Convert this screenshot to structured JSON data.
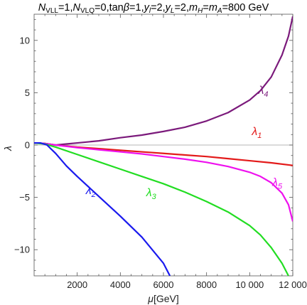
{
  "chart_data": {
    "type": "line",
    "title_parts": [
      {
        "t": "N",
        "style": "i"
      },
      {
        "t": "VLL",
        "style": "sub"
      },
      {
        "t": "=1,",
        "style": "n"
      },
      {
        "t": "N",
        "style": "i"
      },
      {
        "t": "VLQ",
        "style": "sub"
      },
      {
        "t": "=0,tan",
        "style": "n"
      },
      {
        "t": "β",
        "style": "i"
      },
      {
        "t": "=1,",
        "style": "n"
      },
      {
        "t": "y",
        "style": "i"
      },
      {
        "t": "l",
        "style": "subi"
      },
      {
        "t": "=2,",
        "style": "n"
      },
      {
        "t": "y",
        "style": "i"
      },
      {
        "t": "L",
        "style": "subi"
      },
      {
        "t": "=2,",
        "style": "n"
      },
      {
        "t": "m",
        "style": "i"
      },
      {
        "t": "H",
        "style": "subi"
      },
      {
        "t": "=",
        "style": "n"
      },
      {
        "t": "m",
        "style": "i"
      },
      {
        "t": "A",
        "style": "subi"
      },
      {
        "t": "=800 GeV",
        "style": "n"
      }
    ],
    "xlabel_parts": [
      {
        "t": "μ",
        "style": "i"
      },
      {
        "t": "[GeV]",
        "style": "n"
      }
    ],
    "ylabel": "λ",
    "xlim": [
      0,
      12000
    ],
    "ylim": [
      -12.5,
      12.5
    ],
    "x_ticks": [
      2000,
      4000,
      6000,
      8000,
      10000,
      12000
    ],
    "x_tick_labels": [
      "2000",
      "4000",
      "6000",
      "8000",
      "10 000",
      "12 000"
    ],
    "y_ticks": [
      -10,
      -5,
      0,
      5,
      10
    ],
    "y_tick_labels": [
      "−10",
      "−5",
      "0",
      "5",
      "10"
    ],
    "zero_line": true,
    "series": [
      {
        "name": "λ4",
        "base": "λ",
        "sub": "4",
        "color": "#7b1a7b",
        "points": [
          [
            0,
            0.2
          ],
          [
            500,
            0.15
          ],
          [
            1000,
            0
          ],
          [
            1500,
            0.1
          ],
          [
            2000,
            0.2
          ],
          [
            3000,
            0.4
          ],
          [
            4000,
            0.7
          ],
          [
            5000,
            0.95
          ],
          [
            6000,
            1.3
          ],
          [
            7000,
            1.7
          ],
          [
            8000,
            2.3
          ],
          [
            9000,
            3.1
          ],
          [
            10000,
            4.3
          ],
          [
            10500,
            5.2
          ],
          [
            11000,
            6.5
          ],
          [
            11500,
            8.6
          ],
          [
            11800,
            10.4
          ],
          [
            12000,
            12.3
          ]
        ]
      },
      {
        "name": "λ1",
        "base": "λ",
        "sub": "1",
        "color": "#e31a1a",
        "points": [
          [
            0,
            0.2
          ],
          [
            500,
            0.15
          ],
          [
            1000,
            0
          ],
          [
            2000,
            -0.2
          ],
          [
            3000,
            -0.35
          ],
          [
            4000,
            -0.5
          ],
          [
            5000,
            -0.65
          ],
          [
            6000,
            -0.8
          ],
          [
            7000,
            -0.95
          ],
          [
            8000,
            -1.1
          ],
          [
            9000,
            -1.3
          ],
          [
            10000,
            -1.5
          ],
          [
            11000,
            -1.7
          ],
          [
            12000,
            -1.95
          ]
        ]
      },
      {
        "name": "λ5",
        "base": "λ",
        "sub": "5",
        "color": "#ee11ee",
        "points": [
          [
            0,
            0.2
          ],
          [
            500,
            0.15
          ],
          [
            1000,
            0
          ],
          [
            2000,
            -0.25
          ],
          [
            3000,
            -0.45
          ],
          [
            4000,
            -0.65
          ],
          [
            5000,
            -0.85
          ],
          [
            6000,
            -1.1
          ],
          [
            7000,
            -1.35
          ],
          [
            8000,
            -1.65
          ],
          [
            9000,
            -2.05
          ],
          [
            10000,
            -2.6
          ],
          [
            10500,
            -3.0
          ],
          [
            11000,
            -3.6
          ],
          [
            11500,
            -4.6
          ],
          [
            11800,
            -5.7
          ],
          [
            12000,
            -7.3
          ]
        ]
      },
      {
        "name": "λ3",
        "base": "λ",
        "sub": "3",
        "color": "#22dd22",
        "points": [
          [
            0,
            0.2
          ],
          [
            500,
            0.1
          ],
          [
            1000,
            -0.2
          ],
          [
            2000,
            -0.9
          ],
          [
            3000,
            -1.6
          ],
          [
            4000,
            -2.3
          ],
          [
            5000,
            -3.0
          ],
          [
            6000,
            -3.7
          ],
          [
            7000,
            -4.5
          ],
          [
            8000,
            -5.4
          ],
          [
            9000,
            -6.4
          ],
          [
            10000,
            -7.7
          ],
          [
            10500,
            -8.6
          ],
          [
            11000,
            -9.8
          ],
          [
            11500,
            -11.3
          ],
          [
            11800,
            -12.5
          ]
        ]
      },
      {
        "name": "λ2",
        "base": "λ",
        "sub": "2",
        "color": "#1a1aee",
        "points": [
          [
            0,
            0.2
          ],
          [
            300,
            0.2
          ],
          [
            600,
            0
          ],
          [
            1000,
            -0.8
          ],
          [
            1500,
            -2.0
          ],
          [
            2000,
            -3.0
          ],
          [
            3000,
            -4.9
          ],
          [
            4000,
            -6.8
          ],
          [
            5000,
            -8.8
          ],
          [
            6000,
            -11.3
          ],
          [
            6300,
            -12.5
          ]
        ]
      }
    ],
    "curve_labels": [
      {
        "series": 0,
        "x": 10400,
        "y": 4.9
      },
      {
        "series": 1,
        "x": 10100,
        "y": 0.95
      },
      {
        "series": 2,
        "x": 11050,
        "y": -3.9
      },
      {
        "series": 3,
        "x": 5200,
        "y": -4.9
      },
      {
        "series": 4,
        "x": 2400,
        "y": -4.7
      }
    ]
  }
}
